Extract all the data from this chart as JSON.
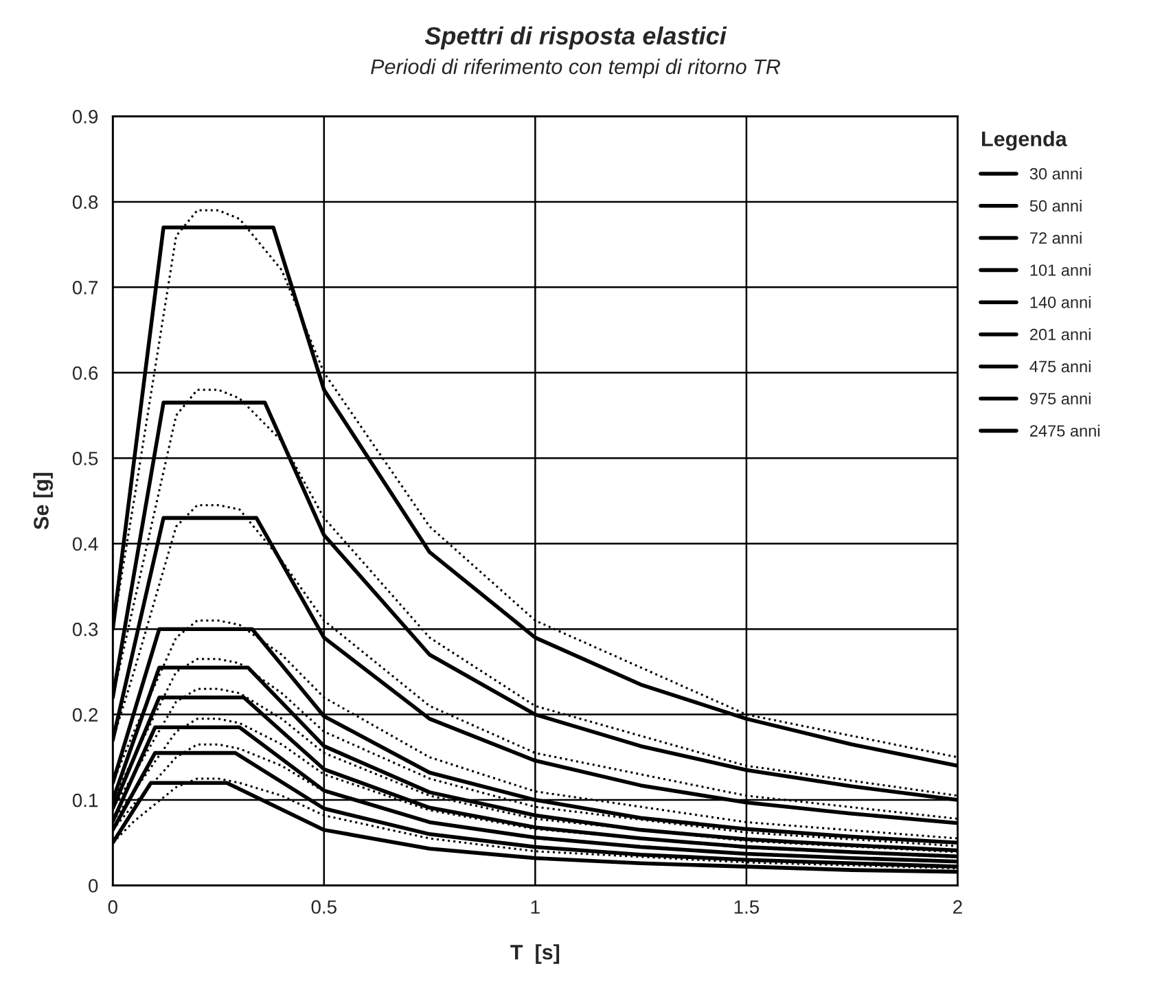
{
  "chart_data": {
    "type": "line",
    "title": "Spettri di risposta elastici",
    "subtitle": "Periodi di riferimento con tempi di ritorno TR",
    "xlabel": "T  [s]",
    "ylabel": "Se [g]",
    "legend_title": "Legenda",
    "xlim": [
      0,
      2
    ],
    "xticks": [
      0,
      0.5,
      1,
      1.5,
      2
    ],
    "ylim": [
      0,
      0.9
    ],
    "yticks": [
      0,
      0.1,
      0.2,
      0.3,
      0.4,
      0.5,
      0.6,
      0.7,
      0.8,
      0.9
    ],
    "grid": true,
    "legend": "right",
    "marker": "none",
    "series": [
      {
        "name": "30 anni",
        "color": "#000000",
        "line_style": "solid",
        "x": [
          0,
          0.09,
          0.27,
          0.5,
          0.75,
          1,
          1.25,
          1.5,
          1.75,
          2
        ],
        "values": [
          0.05,
          0.12,
          0.12,
          0.065,
          0.043,
          0.032,
          0.026,
          0.022,
          0.018,
          0.016
        ]
      },
      {
        "name": "50 anni",
        "color": "#000000",
        "line_style": "solid",
        "x": [
          0,
          0.1,
          0.29,
          0.5,
          0.75,
          1,
          1.25,
          1.5,
          1.75,
          2
        ],
        "values": [
          0.065,
          0.155,
          0.155,
          0.09,
          0.06,
          0.045,
          0.036,
          0.03,
          0.026,
          0.022
        ]
      },
      {
        "name": "72 anni",
        "color": "#000000",
        "line_style": "solid",
        "x": [
          0,
          0.1,
          0.3,
          0.5,
          0.75,
          1,
          1.25,
          1.5,
          1.75,
          2
        ],
        "values": [
          0.075,
          0.185,
          0.185,
          0.111,
          0.074,
          0.056,
          0.045,
          0.037,
          0.032,
          0.028
        ]
      },
      {
        "name": "101 anni",
        "color": "#000000",
        "line_style": "solid",
        "x": [
          0,
          0.11,
          0.31,
          0.5,
          0.75,
          1,
          1.25,
          1.5,
          1.75,
          2
        ],
        "values": [
          0.09,
          0.22,
          0.22,
          0.136,
          0.091,
          0.068,
          0.055,
          0.045,
          0.039,
          0.034
        ]
      },
      {
        "name": "140 anni",
        "color": "#000000",
        "line_style": "solid",
        "x": [
          0,
          0.11,
          0.32,
          0.5,
          0.75,
          1,
          1.25,
          1.5,
          1.75,
          2
        ],
        "values": [
          0.1,
          0.255,
          0.255,
          0.163,
          0.109,
          0.082,
          0.065,
          0.054,
          0.047,
          0.041
        ]
      },
      {
        "name": "201 anni",
        "color": "#000000",
        "line_style": "solid",
        "x": [
          0,
          0.11,
          0.33,
          0.5,
          0.75,
          1,
          1.25,
          1.5,
          1.75,
          2
        ],
        "values": [
          0.12,
          0.3,
          0.3,
          0.198,
          0.132,
          0.1,
          0.079,
          0.066,
          0.057,
          0.05
        ]
      },
      {
        "name": "475 anni",
        "color": "#000000",
        "line_style": "solid",
        "x": [
          0,
          0.12,
          0.34,
          0.5,
          0.75,
          1,
          1.25,
          1.5,
          1.75,
          2
        ],
        "values": [
          0.17,
          0.43,
          0.43,
          0.29,
          0.195,
          0.146,
          0.117,
          0.097,
          0.084,
          0.073
        ]
      },
      {
        "name": "975 anni",
        "color": "#000000",
        "line_style": "solid",
        "x": [
          0,
          0.12,
          0.36,
          0.5,
          0.75,
          1,
          1.25,
          1.5,
          1.75,
          2
        ],
        "values": [
          0.22,
          0.565,
          0.565,
          0.41,
          0.27,
          0.2,
          0.163,
          0.135,
          0.116,
          0.1
        ]
      },
      {
        "name": "2475 anni",
        "color": "#000000",
        "line_style": "solid",
        "x": [
          0,
          0.12,
          0.38,
          0.5,
          0.75,
          1,
          1.25,
          1.5,
          1.75,
          2
        ],
        "values": [
          0.3,
          0.77,
          0.77,
          0.58,
          0.39,
          0.29,
          0.235,
          0.195,
          0.165,
          0.14
        ]
      },
      {
        "color": "#000000",
        "line_style": "dotted",
        "x": [
          0,
          0.05,
          0.15,
          0.2,
          0.25,
          0.3,
          0.4,
          0.5,
          0.75,
          1,
          1.5,
          2
        ],
        "values": [
          0.3,
          0.45,
          0.76,
          0.79,
          0.79,
          0.78,
          0.72,
          0.6,
          0.42,
          0.31,
          0.2,
          0.15
        ]
      },
      {
        "color": "#000000",
        "line_style": "dotted",
        "x": [
          0,
          0.05,
          0.15,
          0.2,
          0.25,
          0.3,
          0.4,
          0.5,
          0.75,
          1,
          1.5,
          2
        ],
        "values": [
          0.22,
          0.33,
          0.55,
          0.58,
          0.58,
          0.57,
          0.52,
          0.43,
          0.29,
          0.21,
          0.14,
          0.105
        ]
      },
      {
        "color": "#000000",
        "line_style": "dotted",
        "x": [
          0,
          0.05,
          0.15,
          0.2,
          0.25,
          0.3,
          0.4,
          0.5,
          0.75,
          1,
          1.5,
          2
        ],
        "values": [
          0.17,
          0.25,
          0.42,
          0.445,
          0.445,
          0.44,
          0.38,
          0.31,
          0.21,
          0.155,
          0.105,
          0.078
        ]
      },
      {
        "color": "#000000",
        "line_style": "dotted",
        "x": [
          0,
          0.05,
          0.15,
          0.2,
          0.25,
          0.3,
          0.4,
          0.5,
          0.75,
          1,
          1.5,
          2
        ],
        "values": [
          0.12,
          0.18,
          0.29,
          0.31,
          0.31,
          0.305,
          0.27,
          0.22,
          0.15,
          0.11,
          0.074,
          0.055
        ]
      },
      {
        "color": "#000000",
        "line_style": "dotted",
        "x": [
          0,
          0.05,
          0.15,
          0.2,
          0.25,
          0.3,
          0.4,
          0.5,
          0.75,
          1,
          1.5,
          2
        ],
        "values": [
          0.1,
          0.15,
          0.25,
          0.265,
          0.265,
          0.26,
          0.225,
          0.18,
          0.125,
          0.092,
          0.062,
          0.046
        ]
      },
      {
        "color": "#000000",
        "line_style": "dotted",
        "x": [
          0,
          0.05,
          0.15,
          0.2,
          0.25,
          0.3,
          0.4,
          0.5,
          0.75,
          1,
          1.5,
          2
        ],
        "values": [
          0.09,
          0.13,
          0.215,
          0.23,
          0.23,
          0.225,
          0.195,
          0.155,
          0.105,
          0.078,
          0.052,
          0.039
        ]
      },
      {
        "color": "#000000",
        "line_style": "dotted",
        "x": [
          0,
          0.05,
          0.15,
          0.2,
          0.25,
          0.3,
          0.4,
          0.5,
          0.75,
          1,
          1.5,
          2
        ],
        "values": [
          0.075,
          0.11,
          0.18,
          0.195,
          0.195,
          0.19,
          0.165,
          0.13,
          0.088,
          0.066,
          0.044,
          0.033
        ]
      },
      {
        "color": "#000000",
        "line_style": "dotted",
        "x": [
          0,
          0.05,
          0.15,
          0.2,
          0.25,
          0.3,
          0.4,
          0.5,
          0.75,
          1,
          1.5,
          2
        ],
        "values": [
          0.065,
          0.095,
          0.15,
          0.165,
          0.165,
          0.16,
          0.14,
          0.11,
          0.074,
          0.055,
          0.037,
          0.028
        ]
      },
      {
        "color": "#000000",
        "line_style": "dotted",
        "x": [
          0,
          0.05,
          0.15,
          0.2,
          0.25,
          0.3,
          0.4,
          0.5,
          0.75,
          1,
          1.5,
          2
        ],
        "values": [
          0.05,
          0.075,
          0.115,
          0.125,
          0.125,
          0.12,
          0.105,
          0.082,
          0.055,
          0.04,
          0.027,
          0.02
        ]
      }
    ]
  }
}
